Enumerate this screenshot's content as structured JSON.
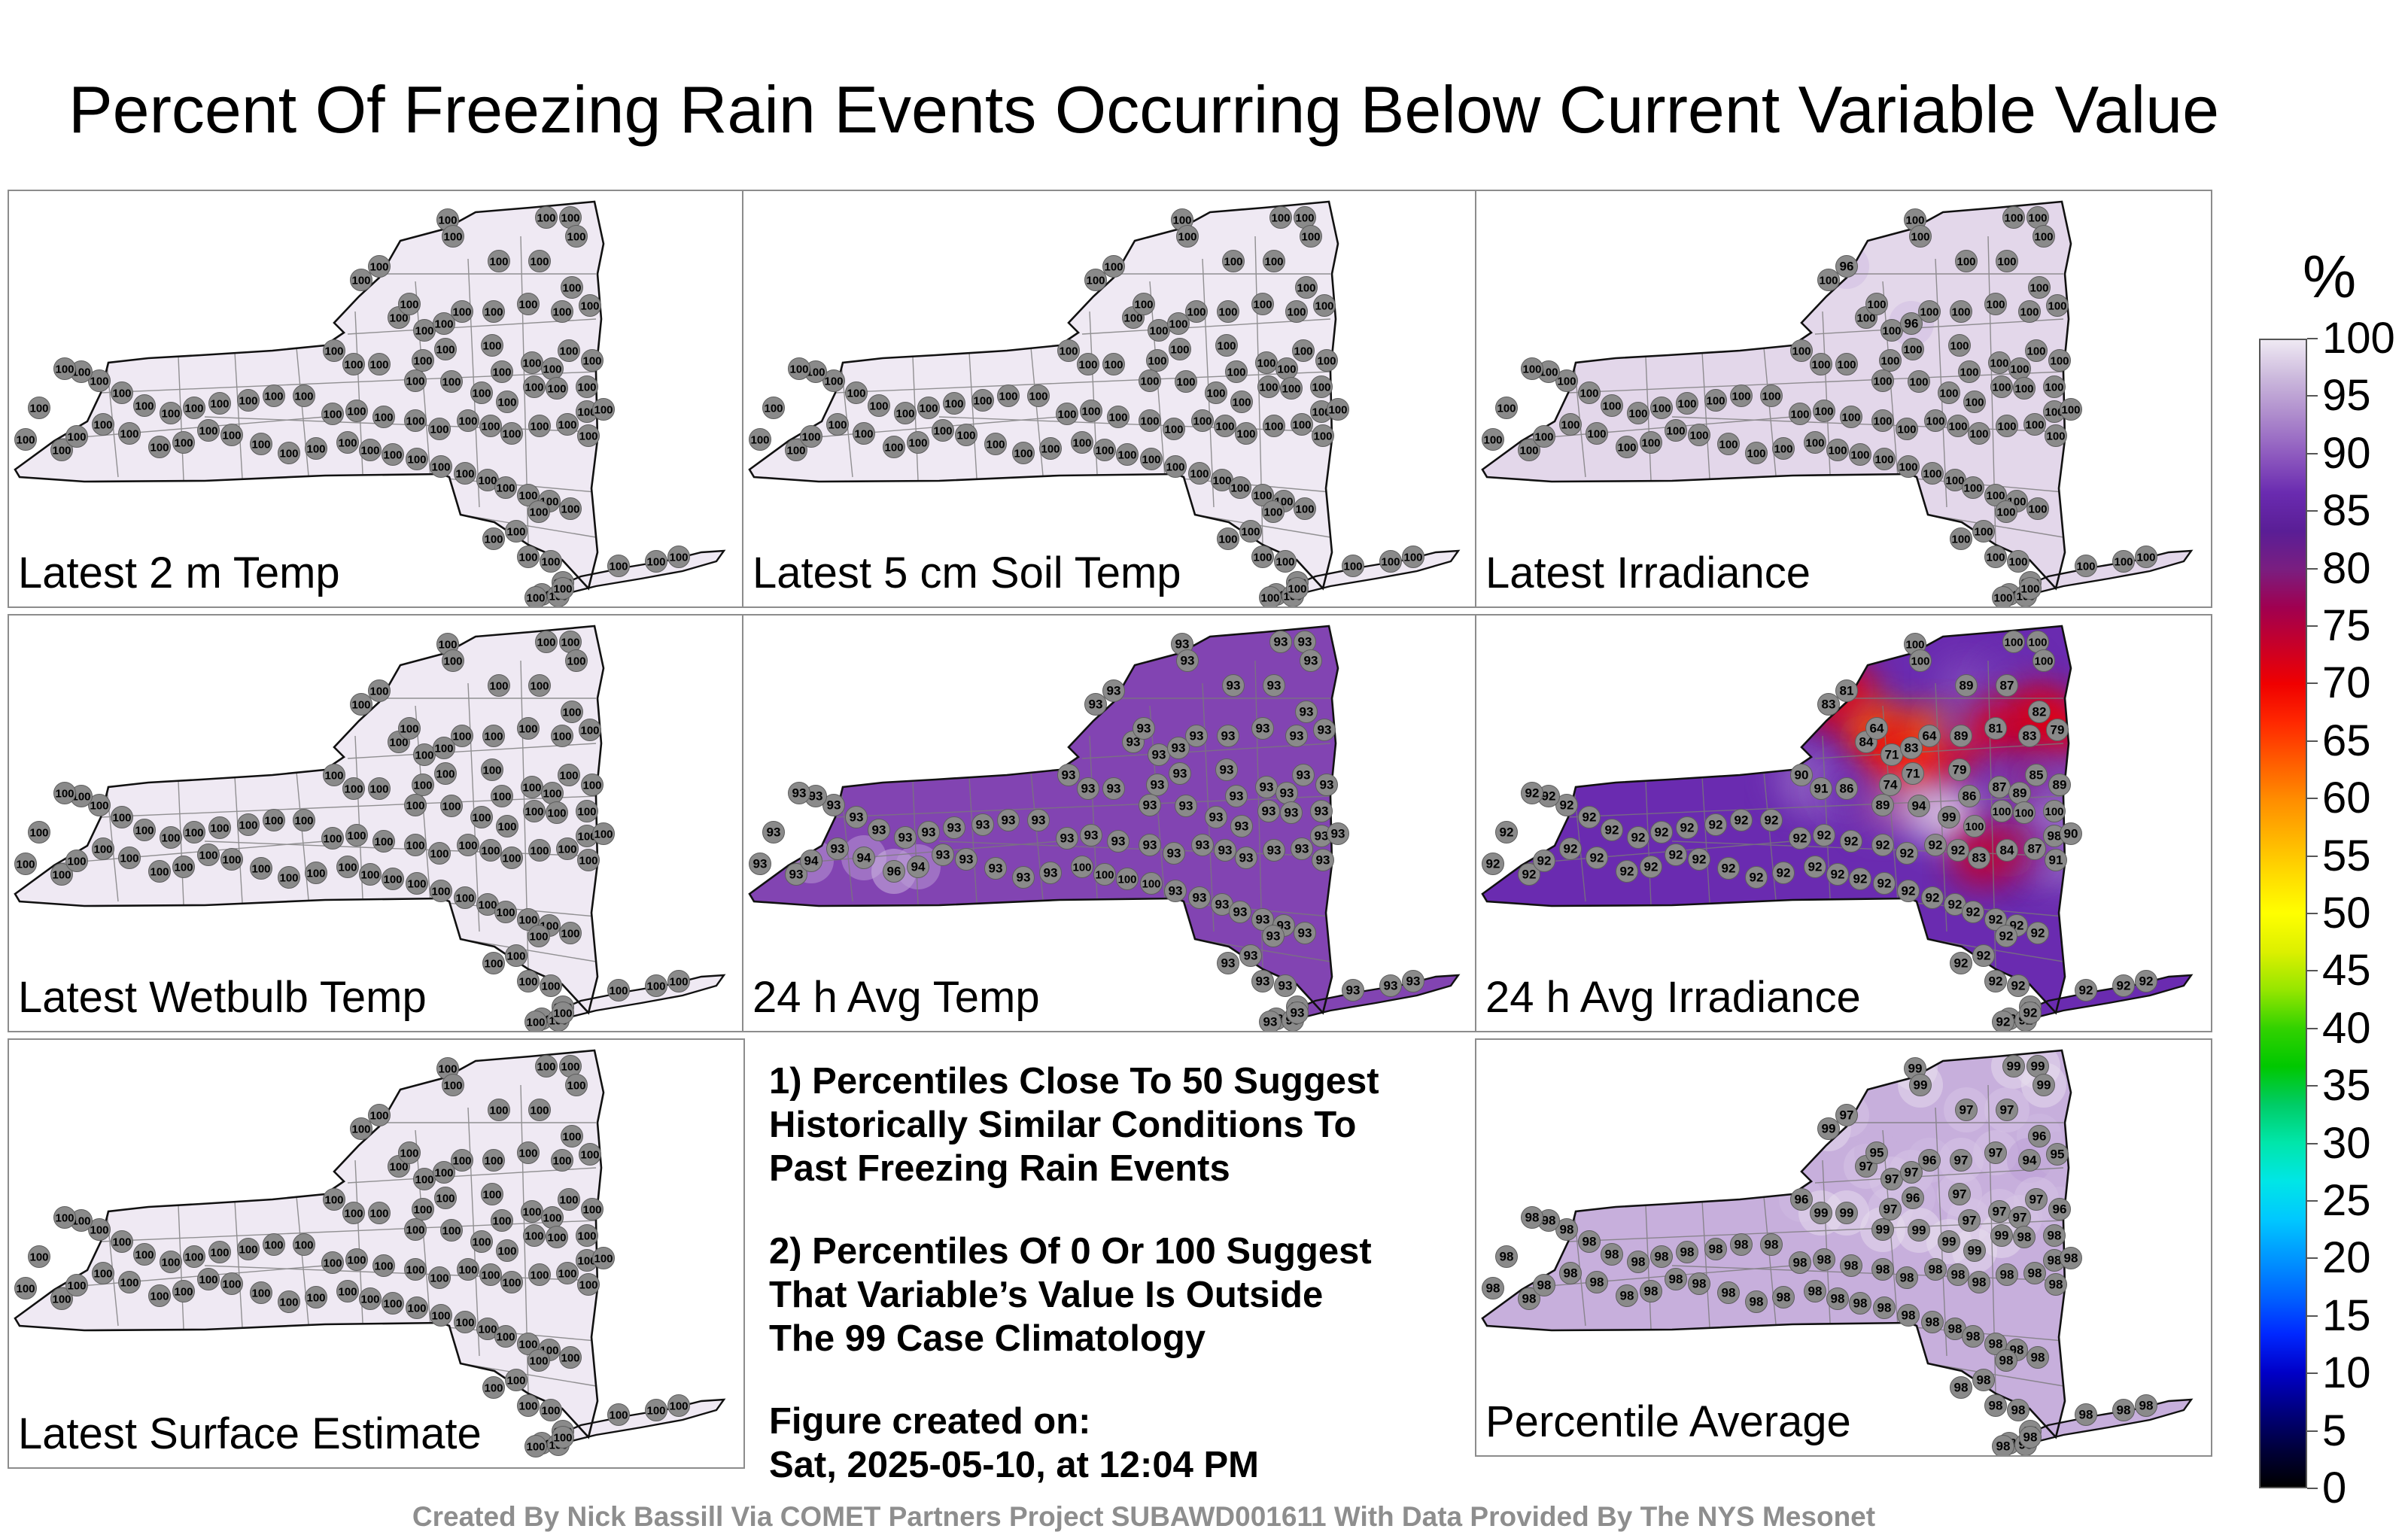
{
  "title": "Percent Of Freezing Rain Events Occurring Below Current Variable Value",
  "panels": [
    {
      "id": "latest-2m-temp",
      "label": "Latest 2 m Temp",
      "value": 100,
      "fill": "#efe9f3",
      "label_offset_top": false
    },
    {
      "id": "latest-5cm-soil-temp",
      "label": "Latest 5 cm Soil Temp",
      "value": 100,
      "fill": "#efe9f3"
    },
    {
      "id": "latest-irradiance",
      "label": "Latest Irradiance",
      "value": 100,
      "fill": "#e3d7ea",
      "overrides": {
        "6": 96,
        "13": 96
      }
    },
    {
      "id": "latest-wetbulb-temp",
      "label": "Latest Wetbulb Temp",
      "value": 100,
      "fill": "#efe9f3"
    },
    {
      "id": "24h-avg-temp",
      "label": "24 h Avg Temp",
      "value": 93,
      "fill": "#8244b2",
      "overrides": {
        "64": 94,
        "66": 94,
        "67": 96,
        "68": 94,
        "74": 100,
        "75": 100,
        "76": 100,
        "77": 100
      }
    },
    {
      "id": "24h-avg-irradiance",
      "label": "24 h Avg Irradiance",
      "value": 92,
      "fill": "#6a2bb0",
      "hot": true,
      "overrides": {
        "0": 100,
        "1": 100,
        "2": 100,
        "3": 100,
        "4": 100,
        "5": 83,
        "6": 81,
        "7": 89,
        "8": 87,
        "9": 82,
        "10": 84,
        "11": 64,
        "12": 71,
        "13": 83,
        "14": 64,
        "15": 89,
        "16": 81,
        "17": 83,
        "18": 79,
        "19": 74,
        "20": 71,
        "21": 79,
        "22": 86,
        "23": 87,
        "24": 89,
        "25": 85,
        "26": 89,
        "27": 90,
        "28": 91,
        "29": 86,
        "30": 89,
        "31": 94,
        "32": 99,
        "33": 100,
        "34": 100,
        "35": 100,
        "36": 100,
        "37": 98,
        "38": 90,
        "39": 91,
        "40": 87,
        "41": 84,
        "42": 83
      }
    },
    {
      "id": "latest-surface-estimate",
      "label": "Latest Surface Estimate",
      "value": 100,
      "fill": "#efe9f3"
    },
    {
      "id": "percentile-average",
      "label": "Percentile Average",
      "value": 98,
      "fill": "#c7afdc",
      "overrides": {
        "0": 99,
        "1": 99,
        "2": 99,
        "3": 99,
        "4": 99,
        "5": 99,
        "6": 97,
        "7": 97,
        "8": 97,
        "9": 96,
        "10": 97,
        "11": 95,
        "12": 97,
        "13": 97,
        "14": 96,
        "15": 97,
        "16": 97,
        "17": 94,
        "18": 95,
        "19": 97,
        "20": 96,
        "21": 97,
        "22": 97,
        "23": 97,
        "24": 97,
        "25": 97,
        "26": 96,
        "27": 96,
        "28": 99,
        "29": 99,
        "30": 99,
        "31": 99,
        "32": 99,
        "33": 99,
        "34": 99
      }
    }
  ],
  "notes": [
    [
      "1) Percentiles Close To 50 Suggest",
      "Historically Similar Conditions To",
      "Past Freezing Rain Events"
    ],
    [
      "2) Percentiles Of 0 Or 100 Suggest",
      "That Variable’s Value Is Outside",
      "The 99 Case Climatology"
    ],
    [
      "Figure created on:",
      "Sat, 2025-05-10, at 12:04 PM"
    ]
  ],
  "colorbar": {
    "title": "%",
    "ticks": [
      "100",
      "95",
      "90",
      "85",
      "80",
      "75",
      "70",
      "65",
      "60",
      "55",
      "50",
      "45",
      "40",
      "35",
      "30",
      "25",
      "20",
      "15",
      "10",
      "5",
      "0"
    ],
    "min": 0,
    "max": 100,
    "colors": [
      "#000000",
      "#00003c",
      "#000080",
      "#0000c8",
      "#0028ff",
      "#0064ff",
      "#0096ff",
      "#00c8ff",
      "#00e6e6",
      "#00e6aa",
      "#00cc66",
      "#00c800",
      "#32d200",
      "#96e600",
      "#dcf000",
      "#ffff00",
      "#ffdc00",
      "#ffb400",
      "#ff8c00",
      "#ff5a00",
      "#ff2800",
      "#f00000",
      "#c80028",
      "#a00050",
      "#7a1e80",
      "#5a1e96",
      "#6a2bb0",
      "#8e5abf",
      "#ad8acc",
      "#cbb8dc",
      "#efe9f3"
    ]
  },
  "credit": "Created By Nick Bassill Via COMET Partners Project SUBAWD001611 With Data Provided By The NYS Mesonet"
}
